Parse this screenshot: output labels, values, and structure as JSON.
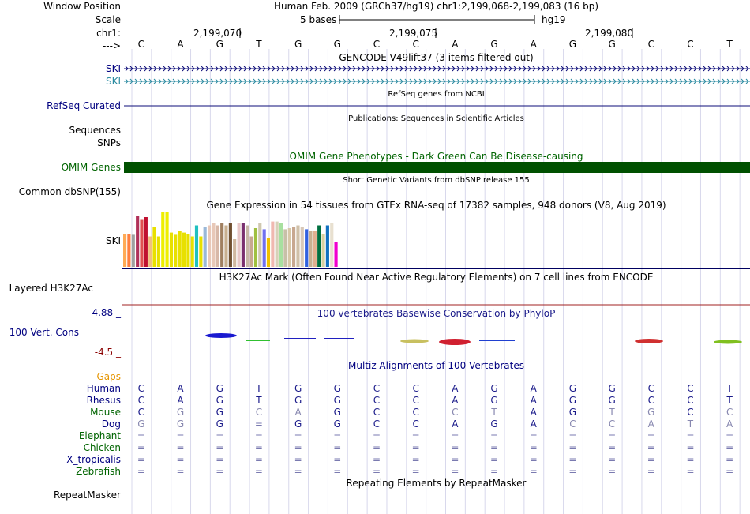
{
  "position": {
    "label": "Window Position",
    "text": "Human Feb. 2009 (GRCh37/hg19)   chr1:2,199,068-2,199,083 (16 bp)"
  },
  "scale": {
    "label": "Scale",
    "bases_label": "5 bases",
    "assembly": "hg19"
  },
  "coordinates": {
    "chrom_label": "chr1:",
    "ticks": [
      "2,199,070",
      "2,199,075",
      "2,199,080"
    ]
  },
  "sequence": {
    "strand_label": "--->",
    "bases": [
      "C",
      "A",
      "G",
      "T",
      "G",
      "G",
      "C",
      "C",
      "A",
      "G",
      "A",
      "G",
      "G",
      "C",
      "C",
      "T"
    ]
  },
  "gencode": {
    "title": "GENCODE V49lift37 (3 items filtered out)",
    "genes": [
      "SKI",
      "SKI"
    ]
  },
  "refseq": {
    "label": "RefSeq Curated",
    "title": "RefSeq genes from NCBI"
  },
  "publications": {
    "title": "Publications: Sequences in Scientific Articles",
    "label_lines": [
      "Sequences",
      "SNPs"
    ]
  },
  "omim": {
    "label": "OMIM Genes",
    "title": "OMIM Gene Phenotypes - Dark Green Can Be Disease-causing",
    "bar_color": "#005000"
  },
  "dbsnp": {
    "label": "Common dbSNP(155)",
    "title": "Short Genetic Variants from dbSNP release 155"
  },
  "gtex": {
    "title": "Gene Expression in 54 tissues from GTEx RNA-seq of 17382 samples, 948 donors (V8, Aug 2019)",
    "label": "SKI",
    "expression_fraction": [
      0.6,
      0.6,
      0.58,
      0.92,
      0.85,
      0.9,
      0.55,
      0.72,
      0.55,
      1.0,
      1.0,
      0.62,
      0.58,
      0.65,
      0.62,
      0.6,
      0.55,
      0.75,
      0.55,
      0.72,
      0.75,
      0.8,
      0.75,
      0.8,
      0.75,
      0.8,
      0.5,
      0.8,
      0.8,
      0.75,
      0.55,
      0.7,
      0.8,
      0.68,
      0.52,
      0.82,
      0.82,
      0.8,
      0.68,
      0.7,
      0.72,
      0.75,
      0.72,
      0.68,
      0.65,
      0.65,
      0.75,
      0.6,
      0.75,
      0.8,
      0.45
    ],
    "colors": [
      "#ffaa55",
      "#ff7f3f",
      "#a0a0a0",
      "#b0305a",
      "#e05050",
      "#c01030",
      "#f0c080",
      "#e8e000",
      "#e8e000",
      "#eeee00",
      "#eeee00",
      "#e8e000",
      "#e8e000",
      "#e8e000",
      "#e8e000",
      "#e8e000",
      "#e8e000",
      "#20c0c0",
      "#e8e000",
      "#9ab8d8",
      "#e8c8b8",
      "#e8c8b8",
      "#d8b8a8",
      "#a08060",
      "#c8b090",
      "#705030",
      "#d0b8a0",
      "#e8c8c8",
      "#7a3070",
      "#c8b8a8",
      "#c8a890",
      "#a0c040",
      "#d0c8b0",
      "#7070f0",
      "#f0c000",
      "#f0b8b0",
      "#d8d0b8",
      "#a8e0a0",
      "#c8c0a8",
      "#d8c8a8",
      "#c8a890",
      "#d0c0a8",
      "#d8c8b8",
      "#3060e0",
      "#c8b090",
      "#e0b090",
      "#007040",
      "#d8d0a0",
      "#1070c0",
      "#e8e0d0",
      "#f000d0"
    ]
  },
  "h3k27ac": {
    "label": "Layered H3K27Ac",
    "title": "H3K27Ac Mark (Often Found Near Active Regulatory Elements) on 7 cell lines from ENCODE"
  },
  "phylop": {
    "title": "100 vertebrates Basewise Conservation by PhyloP",
    "label": "100 Vert. Cons",
    "max": "4.88 _",
    "min": "-4.5 _"
  },
  "multiz": {
    "title": "Multiz Alignments of 100 Vertebrates",
    "gaps_label": "Gaps",
    "species": [
      {
        "name": "Human",
        "bases": [
          "C",
          "A",
          "G",
          "T",
          "G",
          "G",
          "C",
          "C",
          "A",
          "G",
          "A",
          "G",
          "G",
          "C",
          "C",
          "T"
        ]
      },
      {
        "name": "Rhesus",
        "bases": [
          "C",
          "A",
          "G",
          "T",
          "G",
          "G",
          "C",
          "C",
          "A",
          "G",
          "A",
          "G",
          "G",
          "C",
          "C",
          "T"
        ]
      },
      {
        "name": "Mouse",
        "bases": [
          "C",
          "G",
          "G",
          "C",
          "A",
          "G",
          "C",
          "C",
          "C",
          "T",
          "A",
          "G",
          "T",
          "G",
          "C",
          "C"
        ]
      },
      {
        "name": "Dog",
        "bases": [
          "G",
          "G",
          "G",
          "=",
          "G",
          "G",
          "C",
          "C",
          "A",
          "G",
          "A",
          "C",
          "C",
          "A",
          "T",
          "A"
        ]
      },
      {
        "name": "Elephant",
        "bases": [
          "=",
          "=",
          "=",
          "=",
          "=",
          "=",
          "=",
          "=",
          "=",
          "=",
          "=",
          "=",
          "=",
          "=",
          "=",
          "="
        ]
      },
      {
        "name": "Chicken",
        "bases": [
          "=",
          "=",
          "=",
          "=",
          "=",
          "=",
          "=",
          "=",
          "=",
          "=",
          "=",
          "=",
          "=",
          "=",
          "=",
          "="
        ]
      },
      {
        "name": "X_tropicalis",
        "bases": [
          "=",
          "=",
          "=",
          "=",
          "=",
          "=",
          "=",
          "=",
          "=",
          "=",
          "=",
          "=",
          "=",
          "=",
          "=",
          "="
        ]
      },
      {
        "name": "Zebrafish",
        "bases": [
          "=",
          "=",
          "=",
          "=",
          "=",
          "=",
          "=",
          "=",
          "=",
          "=",
          "=",
          "=",
          "=",
          "=",
          "=",
          "="
        ]
      }
    ]
  },
  "repeatmasker": {
    "title": "Repeating Elements by RepeatMasker",
    "label": "RepeatMasker"
  }
}
